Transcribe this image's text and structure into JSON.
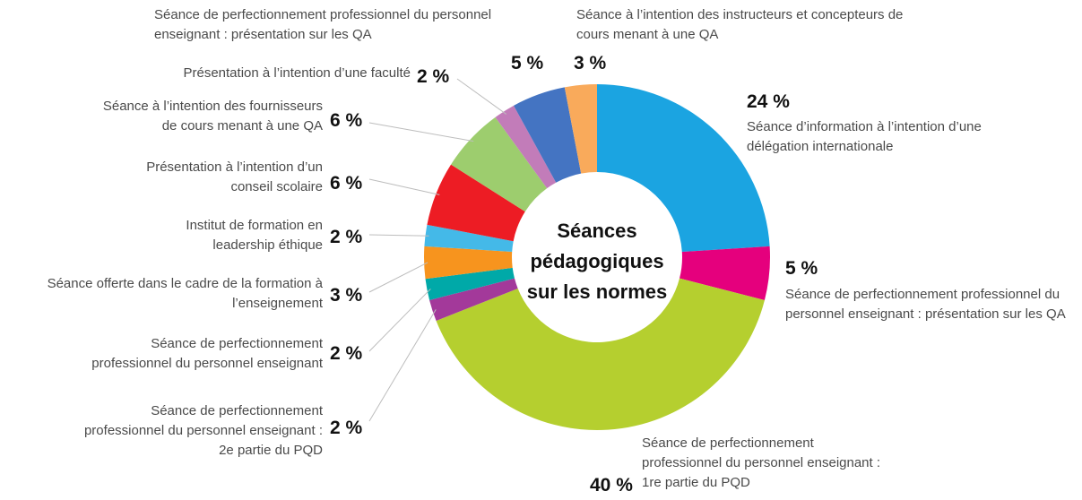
{
  "chart_data": {
    "type": "donut",
    "title": [
      "Séances",
      "pédagogiques",
      "sur les normes"
    ],
    "categories": [
      "Séance d’information à l’intention d’une délégation internationale",
      "Séance de perfectionnement professionnel du personnel enseignant : présentation sur les QA",
      "Séance de perfectionnement professionnel du personnel enseignant : 1re partie du PQD",
      "Séance de perfectionnement professionnel du personnel enseignant : 2e partie du PQD",
      "Séance de perfectionnement professionnel du personnel enseignant",
      "Séance offerte dans le cadre de la formation à l’enseignement",
      "Institut de formation en leadership éthique",
      "Présentation à l’intention d’un conseil scolaire",
      "Séance à l’intention des fournisseurs de cours menant à une QA",
      "Présentation à l’intention d’une faculté",
      "Séance de perfectionnement professionnel du personnel enseignant : présentation sur les QA",
      "Séance à l’intention des instructeurs et concepteurs de cours menant à une QA"
    ],
    "values": [
      24,
      5,
      40,
      2,
      2,
      3,
      2,
      6,
      6,
      2,
      5,
      3
    ],
    "value_labels": [
      "24 %",
      "5 %",
      "40 %",
      "2 %",
      "2 %",
      "3 %",
      "2 %",
      "6 %",
      "6 %",
      "2 %",
      "5 %",
      "3 %"
    ],
    "colors": [
      "#1ba4e1",
      "#e5007d",
      "#b5cf2f",
      "#a3399a",
      "#00a9a8",
      "#f7941e",
      "#44b9e8",
      "#ed1c24",
      "#9dcd6e",
      "#c27cb9",
      "#4474c2",
      "#f9aa5b"
    ]
  }
}
